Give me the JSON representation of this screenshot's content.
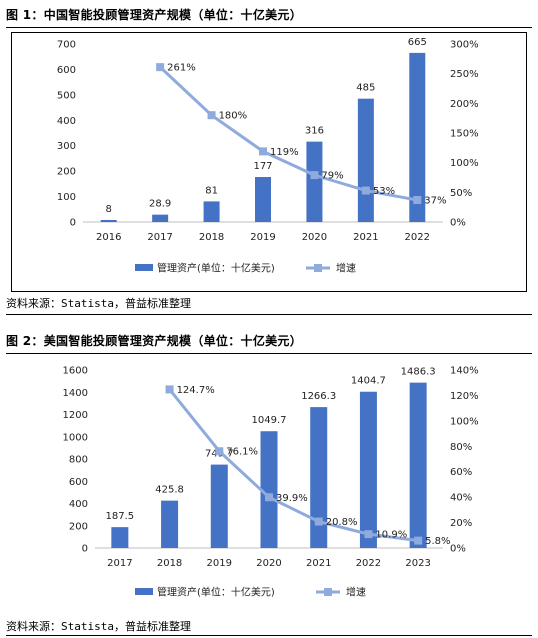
{
  "figure1": {
    "title": "图 1：中国智能投顾管理资产规模（单位：十亿美元）",
    "source": "资料来源：Statista，普益标准整理"
  },
  "figure2": {
    "title": "图 2：美国智能投顾管理资产规模（单位：十亿美元）",
    "source": "资料来源：Statista，普益标准整理"
  },
  "colors": {
    "bar": "#4472c4",
    "line": "#8faadc",
    "frame": "#000000"
  },
  "chart_data": [
    {
      "type": "bar",
      "categories": [
        "2016",
        "2017",
        "2018",
        "2019",
        "2020",
        "2021",
        "2022"
      ],
      "series": [
        {
          "name": "管理资产(单位：十亿美元)",
          "type": "bar",
          "axis": "left",
          "values": [
            8,
            28.9,
            81,
            177,
            316,
            485,
            665
          ],
          "labels": [
            "8",
            "28.9",
            "81",
            "177",
            "316",
            "485",
            "665"
          ]
        },
        {
          "name": "增速",
          "type": "line",
          "axis": "right",
          "values": [
            null,
            261,
            180,
            119,
            79,
            53,
            37
          ],
          "labels": [
            "",
            "261%",
            "180%",
            "119%",
            "79%",
            "53%",
            "37%"
          ]
        }
      ],
      "left_axis": {
        "min": 0,
        "max": 700,
        "step": 100,
        "ticks": [
          "0",
          "100",
          "200",
          "300",
          "400",
          "500",
          "600",
          "700"
        ]
      },
      "right_axis": {
        "min": 0,
        "max": 300,
        "step": 50,
        "ticks": [
          "0%",
          "50%",
          "100%",
          "150%",
          "200%",
          "250%",
          "300%"
        ]
      },
      "legend": {
        "position": "bottom",
        "bar_label": "管理资产(单位：十亿美元)",
        "line_label": "增速"
      },
      "grid": false
    },
    {
      "type": "bar",
      "categories": [
        "2017",
        "2018",
        "2019",
        "2020",
        "2021",
        "2022",
        "2023"
      ],
      "series": [
        {
          "name": "管理资产(单位：十亿美元)",
          "type": "bar",
          "axis": "left",
          "values": [
            187.5,
            425.8,
            749.7,
            1049.7,
            1266.3,
            1404.7,
            1486.3
          ],
          "labels": [
            "187.5",
            "425.8",
            "749.7",
            "1049.7",
            "1266.3",
            "1404.7",
            "1486.3"
          ]
        },
        {
          "name": "增速",
          "type": "line",
          "axis": "right",
          "values": [
            null,
            124.7,
            76.1,
            39.9,
            20.8,
            10.9,
            5.8
          ],
          "labels": [
            "",
            "124.7%",
            "76.1%",
            "39.9%",
            "20.8%",
            "10.9%",
            "5.8%"
          ]
        }
      ],
      "left_axis": {
        "min": 0,
        "max": 1600,
        "step": 200,
        "ticks": [
          "0",
          "200",
          "400",
          "600",
          "800",
          "1000",
          "1200",
          "1400",
          "1600"
        ]
      },
      "right_axis": {
        "min": 0,
        "max": 140,
        "step": 20,
        "ticks": [
          "0%",
          "20%",
          "40%",
          "60%",
          "80%",
          "100%",
          "120%",
          "140%"
        ]
      },
      "legend": {
        "position": "bottom",
        "bar_label": "管理资产(单位：十亿美元)",
        "line_label": "增速"
      },
      "grid": false
    }
  ]
}
